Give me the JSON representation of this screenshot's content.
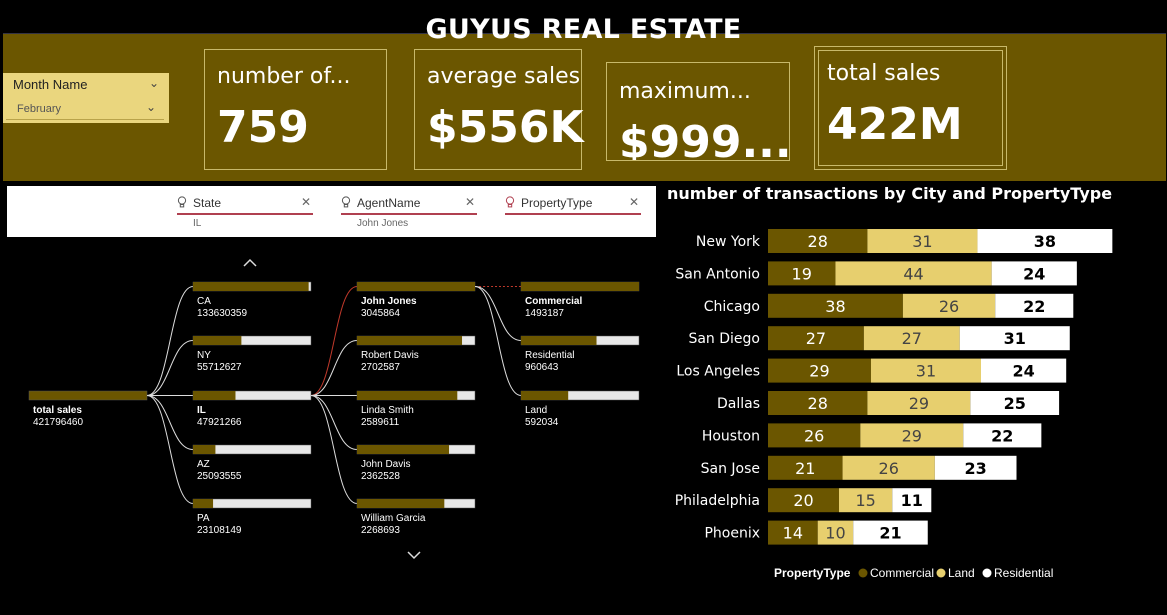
{
  "title": "GUYUS REAL ESTATE",
  "slicer": {
    "label": "Month Name",
    "value": "February"
  },
  "cards": [
    {
      "label": "number of...",
      "value": "759"
    },
    {
      "label": "average sales",
      "value": "$556K"
    },
    {
      "label": "maximum...",
      "value": "$999...."
    },
    {
      "label": "total sales",
      "value": "422M"
    }
  ],
  "filters": [
    {
      "name": "State",
      "selected": "IL"
    },
    {
      "name": "AgentName",
      "selected": "John Jones"
    },
    {
      "name": "PropertyType",
      "selected": ""
    }
  ],
  "decomposition": {
    "root": {
      "label": "total sales",
      "value": "421796460"
    },
    "levels": [
      {
        "nodes": [
          {
            "label": "CA",
            "value": "133630359",
            "fill": 0.98,
            "selected": false
          },
          {
            "label": "NY",
            "value": "55712627",
            "fill": 0.41,
            "selected": false
          },
          {
            "label": "IL",
            "value": "47921266",
            "fill": 0.36,
            "selected": true
          },
          {
            "label": "AZ",
            "value": "25093555",
            "fill": 0.19,
            "selected": false
          },
          {
            "label": "PA",
            "value": "23108149",
            "fill": 0.17,
            "selected": false
          }
        ]
      },
      {
        "nodes": [
          {
            "label": "John Jones",
            "value": "3045864",
            "fill": 1.0,
            "selected": true
          },
          {
            "label": "Robert Davis",
            "value": "2702587",
            "fill": 0.89,
            "selected": false
          },
          {
            "label": "Linda Smith",
            "value": "2589611",
            "fill": 0.85,
            "selected": false
          },
          {
            "label": "John Davis",
            "value": "2362528",
            "fill": 0.78,
            "selected": false
          },
          {
            "label": "William Garcia",
            "value": "2268693",
            "fill": 0.74,
            "selected": false
          }
        ]
      },
      {
        "nodes": [
          {
            "label": "Commercial",
            "value": "1493187",
            "fill": 1.0,
            "selected": true
          },
          {
            "label": "Residential",
            "value": "960643",
            "fill": 0.64,
            "selected": false
          },
          {
            "label": "Land",
            "value": "592034",
            "fill": 0.4,
            "selected": false
          }
        ]
      }
    ]
  },
  "chart_data": {
    "type": "bar",
    "orientation": "horizontal",
    "stacked": true,
    "title": "number of transactions by City and PropertyType",
    "categories": [
      "New York",
      "San Antonio",
      "Chicago",
      "San Diego",
      "Los Angeles",
      "Dallas",
      "Houston",
      "San Jose",
      "Philadelphia",
      "Phoenix"
    ],
    "series": [
      {
        "name": "Commercial",
        "color": "#6b5600",
        "values": [
          28,
          19,
          38,
          27,
          29,
          28,
          26,
          21,
          20,
          14
        ]
      },
      {
        "name": "Land",
        "color": "#e7cf6e",
        "values": [
          31,
          44,
          26,
          27,
          31,
          29,
          29,
          26,
          15,
          10
        ]
      },
      {
        "name": "Residential",
        "color": "#ffffff",
        "values": [
          38,
          24,
          22,
          31,
          24,
          25,
          22,
          23,
          11,
          21
        ]
      }
    ],
    "legend_title": "PropertyType",
    "legend_position": "bottom"
  },
  "colors": {
    "band": "#6b5600",
    "accent": "#e7cf6e",
    "filter_line": "#b04050",
    "bar_track": "#e8e8e8"
  }
}
